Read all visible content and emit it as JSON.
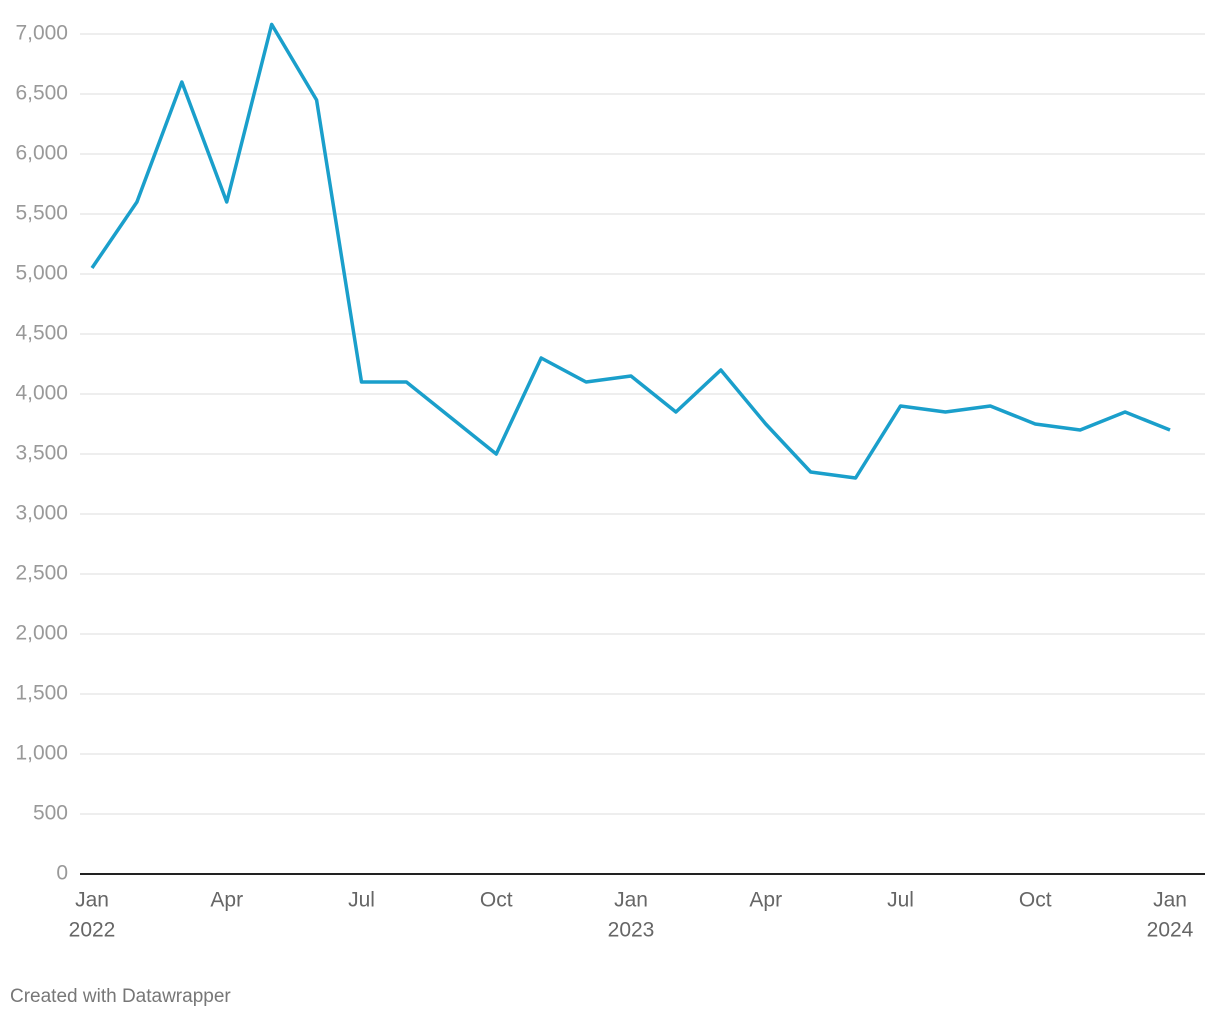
{
  "chart_data": {
    "type": "line",
    "x": [
      "2022-01",
      "2022-02",
      "2022-03",
      "2022-04",
      "2022-05",
      "2022-06",
      "2022-07",
      "2022-08",
      "2022-09",
      "2022-10",
      "2022-11",
      "2022-12",
      "2023-01",
      "2023-02",
      "2023-03",
      "2023-04",
      "2023-05",
      "2023-06",
      "2023-07",
      "2023-08",
      "2023-09",
      "2023-10",
      "2023-11",
      "2023-12",
      "2024-01"
    ],
    "series": [
      {
        "color": "#1a9fcb",
        "values": [
          5050,
          5600,
          6600,
          5600,
          7080,
          6450,
          4100,
          4100,
          3800,
          3500,
          4300,
          4100,
          4150,
          3850,
          4200,
          3750,
          3350,
          3300,
          3900,
          3850,
          3900,
          3750,
          3700,
          3850,
          3700
        ]
      }
    ],
    "xlim": [
      "2022-01",
      "2024-01"
    ],
    "xticks": [
      {
        "value": "2022-01",
        "label": "Jan"
      },
      {
        "value": "2022-04",
        "label": "Apr"
      },
      {
        "value": "2022-07",
        "label": "Jul"
      },
      {
        "value": "2022-10",
        "label": "Oct"
      },
      {
        "value": "2023-01",
        "label": "Jan"
      },
      {
        "value": "2023-04",
        "label": "Apr"
      },
      {
        "value": "2023-07",
        "label": "Jul"
      },
      {
        "value": "2023-10",
        "label": "Oct"
      },
      {
        "value": "2024-01",
        "label": "Jan"
      }
    ],
    "x_year_labels": [
      {
        "value": "2022-01",
        "label": "2022"
      },
      {
        "value": "2023-01",
        "label": "2023"
      },
      {
        "value": "2024-01",
        "label": "2024"
      }
    ],
    "ylim": [
      0,
      7000
    ],
    "yticks": [
      0,
      500,
      {
        "value": 1000,
        "label": "1,000"
      },
      {
        "value": 1500,
        "label": "1,500"
      },
      {
        "value": 2000,
        "label": "2,000"
      },
      {
        "value": 2500,
        "label": "2,500"
      },
      {
        "value": 3000,
        "label": "3,000"
      },
      {
        "value": 3500,
        "label": "3,500"
      },
      {
        "value": 4000,
        "label": "4,000"
      },
      {
        "value": 4500,
        "label": "4,500"
      },
      {
        "value": 5000,
        "label": "5,000"
      },
      {
        "value": 5500,
        "label": "5,500"
      },
      {
        "value": 6000,
        "label": "6,000"
      },
      {
        "value": 6500,
        "label": "6,500"
      },
      {
        "value": 7000,
        "label": "7,000"
      }
    ],
    "grid": true,
    "source": "Created with Datawrapper"
  }
}
